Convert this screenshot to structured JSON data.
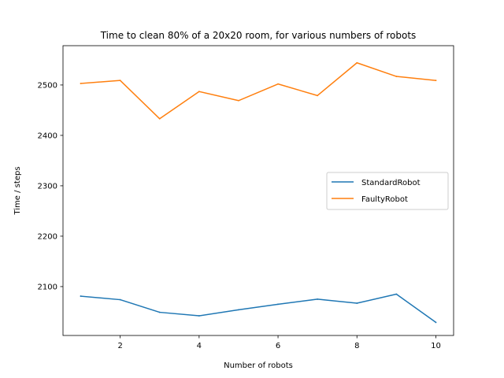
{
  "chart_data": {
    "type": "line",
    "title": "Time to clean 80% of a 20x20 room, for various numbers of robots",
    "xlabel": "Number of robots",
    "ylabel": "Time / steps",
    "x": [
      1,
      2,
      3,
      4,
      5,
      6,
      7,
      8,
      9,
      10
    ],
    "xlim": [
      0.55,
      10.45
    ],
    "ylim": [
      2003,
      2578
    ],
    "xticks": [
      2,
      4,
      6,
      8,
      10
    ],
    "yticks": [
      2100,
      2200,
      2300,
      2400,
      2500
    ],
    "grid": false,
    "legend_position": "center-right",
    "series": [
      {
        "name": "StandardRobot",
        "color": "#1f77b4",
        "values": [
          2081,
          2074,
          2049,
          2042,
          2054,
          2065,
          2075,
          2067,
          2085,
          2029
        ]
      },
      {
        "name": "FaultyRobot",
        "color": "#ff7f0e",
        "values": [
          2503,
          2509,
          2433,
          2487,
          2469,
          2502,
          2479,
          2544,
          2517,
          2509
        ]
      }
    ]
  }
}
